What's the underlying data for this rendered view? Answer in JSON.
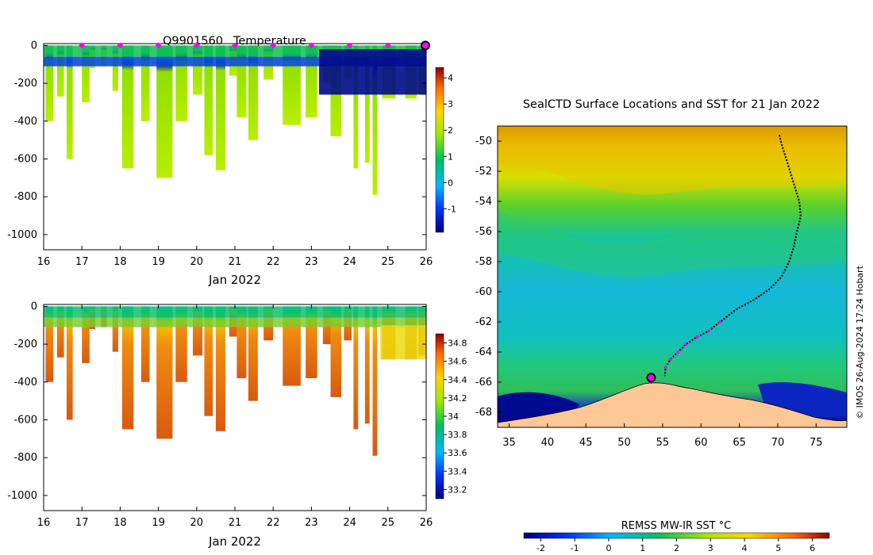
{
  "figure": {
    "float_id": "Q9901560",
    "title_suffix": "Temperature",
    "credit": "© IMOS 26-Aug-2024 17:24 Hobart"
  },
  "chart_data": [
    {
      "type": "heatmap",
      "name": "temperature-section",
      "title": "Q9901560  Temperature",
      "xlabel": "Jan 2022",
      "ylabel": "",
      "xlim": [
        16,
        26
      ],
      "ylim": [
        -1080,
        10
      ],
      "xticks": [
        16,
        17,
        18,
        19,
        20,
        21,
        22,
        23,
        24,
        25,
        26
      ],
      "yticks": [
        0,
        -200,
        -400,
        -600,
        -800,
        -1000
      ],
      "colorbar": {
        "range": [
          -1.9,
          4.4
        ],
        "ticks": [
          -1,
          0,
          1,
          2,
          3,
          4
        ]
      },
      "surface_markers_x": [
        17,
        18,
        19,
        20,
        21,
        22,
        23,
        24,
        25
      ],
      "latest_marker_x": 26,
      "profiles": [
        {
          "t": 16.05,
          "w": 0.2,
          "d": 400
        },
        {
          "t": 16.35,
          "w": 0.18,
          "d": 270
        },
        {
          "t": 16.6,
          "w": 0.16,
          "d": 600
        },
        {
          "t": 17.0,
          "w": 0.2,
          "d": 300
        },
        {
          "t": 17.2,
          "w": 0.15,
          "d": 120
        },
        {
          "t": 17.5,
          "w": 0.15,
          "d": 110
        },
        {
          "t": 17.8,
          "w": 0.15,
          "d": 240
        },
        {
          "t": 18.05,
          "w": 0.3,
          "d": 650
        },
        {
          "t": 18.55,
          "w": 0.22,
          "d": 400
        },
        {
          "t": 18.95,
          "w": 0.42,
          "d": 700
        },
        {
          "t": 19.45,
          "w": 0.3,
          "d": 400
        },
        {
          "t": 19.9,
          "w": 0.25,
          "d": 260
        },
        {
          "t": 20.2,
          "w": 0.22,
          "d": 580
        },
        {
          "t": 20.5,
          "w": 0.25,
          "d": 660
        },
        {
          "t": 20.85,
          "w": 0.2,
          "d": 160
        },
        {
          "t": 21.05,
          "w": 0.25,
          "d": 380
        },
        {
          "t": 21.35,
          "w": 0.25,
          "d": 500
        },
        {
          "t": 21.75,
          "w": 0.25,
          "d": 180
        },
        {
          "t": 22.25,
          "w": 0.47,
          "d": 420
        },
        {
          "t": 22.85,
          "w": 0.3,
          "d": 380
        },
        {
          "t": 23.3,
          "w": 0.2,
          "d": 200
        },
        {
          "t": 23.5,
          "w": 0.28,
          "d": 480
        },
        {
          "t": 23.85,
          "w": 0.2,
          "d": 180
        },
        {
          "t": 24.1,
          "w": 0.12,
          "d": 650
        },
        {
          "t": 24.4,
          "w": 0.12,
          "d": 620
        },
        {
          "t": 24.6,
          "w": 0.12,
          "d": 790
        },
        {
          "t": 24.85,
          "w": 0.35,
          "d": 280
        },
        {
          "t": 25.45,
          "w": 0.3,
          "d": 280
        },
        {
          "t": 25.8,
          "w": 0.2,
          "d": 260
        }
      ]
    },
    {
      "type": "heatmap",
      "name": "salinity-section",
      "title": "",
      "xlabel": "Jan 2022",
      "ylabel": "",
      "xlim": [
        16,
        26
      ],
      "ylim": [
        -1080,
        10
      ],
      "xticks": [
        16,
        17,
        18,
        19,
        20,
        21,
        22,
        23,
        24,
        25,
        26
      ],
      "yticks": [
        0,
        -200,
        -400,
        -600,
        -800,
        -1000
      ],
      "colorbar": {
        "range": [
          33.1,
          34.9
        ],
        "ticks": [
          33.2,
          33.4,
          33.6,
          33.8,
          34,
          34.2,
          34.4,
          34.6,
          34.8
        ]
      }
    },
    {
      "type": "heatmap",
      "name": "sst-map",
      "title": "SealCTD Surface Locations and SST for 21 Jan 2022",
      "xlabel": "",
      "ylabel": "",
      "xlim": [
        33.5,
        79
      ],
      "ylim": [
        -69,
        -49
      ],
      "xticks": [
        35,
        40,
        45,
        50,
        55,
        60,
        65,
        70,
        75
      ],
      "yticks": [
        -50,
        -52,
        -54,
        -56,
        -58,
        -60,
        -62,
        -64,
        -66,
        -68
      ],
      "colorbar": {
        "label": "REMSS MW-IR SST °C",
        "range": [
          -2.5,
          6.5
        ],
        "ticks": [
          -2,
          -1,
          0,
          1,
          2,
          3,
          4,
          5,
          6
        ]
      },
      "track": [
        [
          70.2,
          -49.6
        ],
        [
          70.5,
          -50.2
        ],
        [
          71,
          -51
        ],
        [
          71.6,
          -52
        ],
        [
          72.2,
          -53
        ],
        [
          72.8,
          -54
        ],
        [
          73,
          -55
        ],
        [
          72.5,
          -56
        ],
        [
          72.1,
          -57
        ],
        [
          71.5,
          -58
        ],
        [
          70.5,
          -59
        ],
        [
          69,
          -59.8
        ],
        [
          67,
          -60.5
        ],
        [
          64.5,
          -61.2
        ],
        [
          62.5,
          -62
        ],
        [
          61,
          -62.6
        ],
        [
          59.5,
          -63
        ],
        [
          58,
          -63.5
        ],
        [
          57,
          -64
        ],
        [
          56,
          -64.5
        ],
        [
          55.4,
          -65
        ],
        [
          55.3,
          -65.6
        ]
      ],
      "recent_points": [
        [
          62.5,
          -62
        ],
        [
          61,
          -62.6
        ],
        [
          59.5,
          -63
        ],
        [
          58,
          -63.5
        ],
        [
          57,
          -64
        ],
        [
          56,
          -64.5
        ],
        [
          55.4,
          -65
        ]
      ],
      "latest_position": [
        53.5,
        -65.7
      ]
    }
  ]
}
